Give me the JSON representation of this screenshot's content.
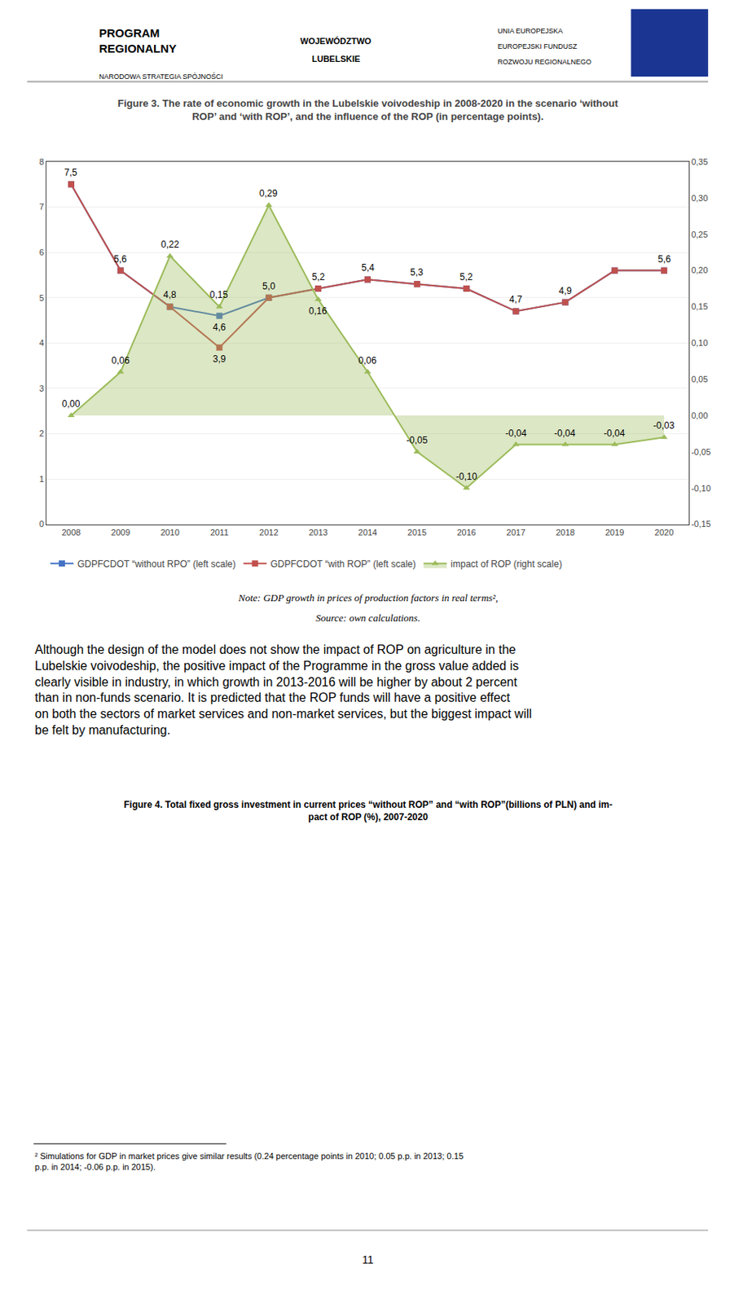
{
  "chart_data": {
    "type": "line",
    "title": "Figure 3. The rate of economic growth in the Lubelskie voivodeship in 2008-2020 in the scenario ‘without\nROP’ and ‘with ROP’, and the influence of the ROP (in percentage points).",
    "x": [
      2008,
      2009,
      2010,
      2011,
      2012,
      2013,
      2014,
      2015,
      2016,
      2017,
      2018,
      2019,
      2020
    ],
    "xlim": [
      2007.5,
      2020.5
    ],
    "xticks": [
      2008,
      2009,
      2010,
      2011,
      2012,
      2013,
      2014,
      2015,
      2016,
      2017,
      2018,
      2019,
      2020
    ],
    "ylim": [
      0,
      8
    ],
    "yticks": [
      0,
      1,
      2,
      3,
      4,
      5,
      6,
      7,
      8
    ],
    "y2lim": [
      -0.15,
      0.35
    ],
    "y2ticks": [
      {
        "value": -0.15,
        "label": "-0,15"
      },
      {
        "value": -0.1,
        "label": "-0,10"
      },
      {
        "value": -0.05,
        "label": "-0,05"
      },
      {
        "value": 0.0,
        "label": "0,00"
      },
      {
        "value": 0.05,
        "label": "0,05"
      },
      {
        "value": 0.1,
        "label": "0,10"
      },
      {
        "value": 0.15,
        "label": "0,15"
      },
      {
        "value": 0.2,
        "label": "0,20"
      },
      {
        "value": 0.25,
        "label": "0,25"
      },
      {
        "value": 0.3,
        "label": "0,30"
      },
      {
        "value": 0.35,
        "label": "0,35"
      }
    ],
    "grid": true,
    "legend": "bottom",
    "data_labels": true,
    "series": [
      {
        "name": "GDPFCDOT “without RPO” (left scale)",
        "color": "#4472C4",
        "marker": "square",
        "values": [
          7.5,
          5.6,
          4.8,
          4.6,
          5.0,
          5.2,
          5.4,
          5.3,
          5.2,
          4.7,
          4.9,
          5.6,
          5.6
        ],
        "value_labels": [
          "7,5",
          "5,6",
          "4,8",
          "4,6",
          "5,0",
          "5,2",
          "5,4",
          "5,3",
          "5,2",
          "4,7",
          "4,9",
          null,
          "5,6"
        ]
      },
      {
        "name": "GDPFCDOT “with ROP” (left scale)",
        "color": "#C0504D",
        "marker": "square",
        "values": [
          7.5,
          5.6,
          4.8,
          3.9,
          5.0,
          5.2,
          5.4,
          5.3,
          5.2,
          4.7,
          4.9,
          5.6,
          5.6
        ],
        "value_labels": [
          null,
          null,
          null,
          "3,9",
          null,
          null,
          null,
          null,
          null,
          null,
          null,
          null,
          null
        ]
      },
      {
        "name": "impact of ROP (right scale)",
        "color": "#9BBB59",
        "marker": "triangle-up",
        "type": "area",
        "axis": "y2",
        "values": [
          0.0,
          0.06,
          0.22,
          0.15,
          0.29,
          0.16,
          0.06,
          -0.05,
          -0.1,
          -0.04,
          -0.04,
          -0.04,
          -0.03
        ],
        "value_labels": [
          "0,00",
          "0,06",
          "0,22",
          "0,15",
          "0,29",
          "0,16",
          "0,06",
          "-0,05",
          "-0,10",
          "-0,04",
          "-0,04",
          "-0,04",
          "-0,03"
        ]
      }
    ],
    "annotations": [
      "PROGRAM\nREGIONALNY",
      "NARODOWA STRATEGIA SPÓJNOŚCI",
      "WOJEWÓDZTWO",
      "LUBELSKIE",
      "UNIA EUROPEJSKA",
      "EUROPEJSKI FUNDUSZ",
      "ROZWOJU REGIONALNEGO",
      "Note: GDP growth in prices of production factors in real terms²,",
      "Source: own calculations.",
      "Although the design of the model does not show the impact of ROP on agriculture in the Lubelskie voivodeship, the positive impact of the Programme in the gross value added is clearly visible in industry, in which growth in 2013-2016 will be higher by about 2 percent than in non-funds scenario. It is predicted that the ROP funds will have a positive effect on both the sectors of market services and non-market services, but the biggest impact will be felt by manufacturing.",
      "Figure 4. Total fixed gross investment in current prices “without ROP” and “with ROP”(billions of PLN) and im-\npact of ROP (%), 2007-2020",
      "² Simulations for GDP in market prices give similar results (0.24 percentage points in 2010; 0.05 p.p. in 2013; 0.15\np.p. in 2014; -0.06 p.p. in 2015).",
      "11"
    ]
  }
}
